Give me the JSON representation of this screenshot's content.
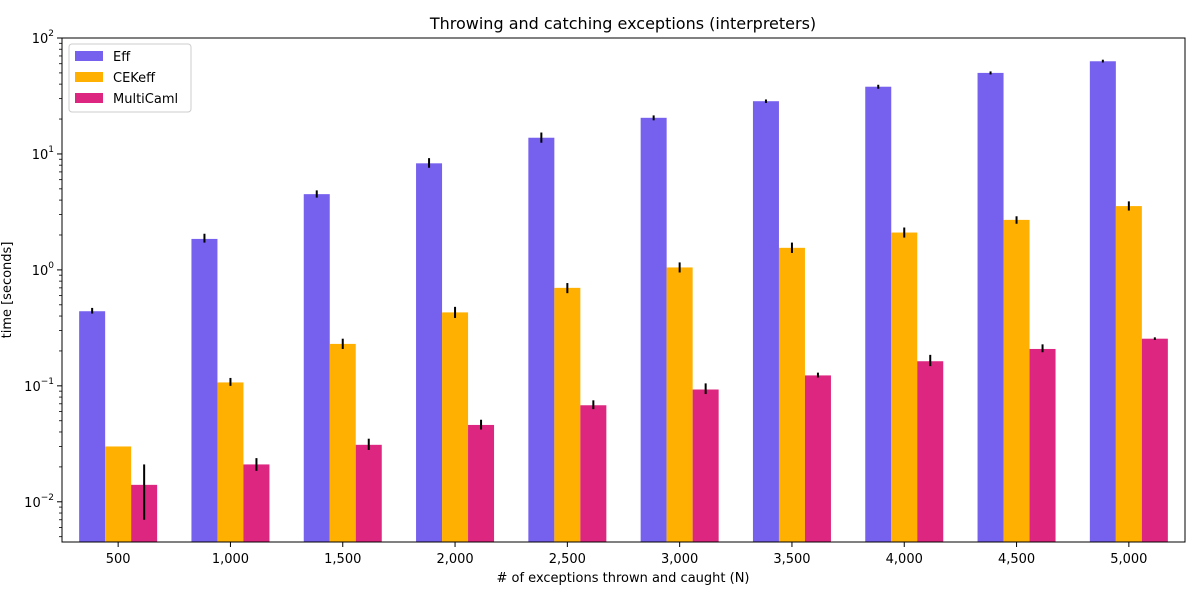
{
  "chart_data": {
    "type": "bar",
    "title": "Throwing and catching exceptions (interpreters)",
    "xlabel": "# of exceptions thrown and caught (N)",
    "ylabel": "time [seconds]",
    "yscale": "log",
    "ylim": [
      0.0045,
      100
    ],
    "ytick_values": [
      0.01,
      0.1,
      1,
      10,
      100
    ],
    "ytick_labels": [
      {
        "base": "10",
        "exp": "−2"
      },
      {
        "base": "10",
        "exp": "−1"
      },
      {
        "base": "10",
        "exp": "0"
      },
      {
        "base": "10",
        "exp": "1"
      },
      {
        "base": "10",
        "exp": "2"
      }
    ],
    "categories": [
      "500",
      "1,000",
      "1,500",
      "2,000",
      "2,500",
      "3,000",
      "3,500",
      "4,000",
      "4,500",
      "5,000"
    ],
    "legend_position": "top-left",
    "grid": false,
    "series": [
      {
        "name": "Eff",
        "color": "#7660ee",
        "values": [
          0.44,
          1.85,
          4.5,
          8.3,
          13.8,
          20.5,
          28.5,
          38.0,
          50.0,
          63.0
        ],
        "error_low": [
          0.42,
          1.72,
          4.2,
          7.6,
          12.5,
          19.5,
          27.5,
          36.5,
          48.5,
          61.5
        ],
        "error_high": [
          0.47,
          2.05,
          4.85,
          9.2,
          15.3,
          21.5,
          29.5,
          39.5,
          51.5,
          65.0
        ]
      },
      {
        "name": "CEKeff",
        "color": "#ffb000",
        "values": [
          0.03,
          0.107,
          0.23,
          0.43,
          0.7,
          1.05,
          1.55,
          2.1,
          2.7,
          3.55
        ],
        "error_low": null,
        "error_high": null,
        "errors": [
          null,
          [
            0.1,
            0.117
          ],
          [
            0.208,
            0.255
          ],
          [
            0.385,
            0.48
          ],
          [
            0.63,
            0.77
          ],
          [
            0.95,
            1.16
          ],
          [
            1.4,
            1.72
          ],
          [
            1.9,
            2.32
          ],
          [
            2.5,
            2.9
          ],
          [
            3.25,
            3.9
          ]
        ]
      },
      {
        "name": "MultiCaml",
        "color": "#dc267f",
        "values": [
          0.014,
          0.021,
          0.031,
          0.046,
          0.068,
          0.093,
          0.123,
          0.163,
          0.208,
          0.255
        ],
        "errors": [
          [
            0.007,
            0.021
          ],
          [
            0.0185,
            0.0238
          ],
          [
            0.028,
            0.035
          ],
          [
            0.042,
            0.051
          ],
          [
            0.063,
            0.075
          ],
          [
            0.085,
            0.105
          ],
          [
            0.118,
            0.13
          ],
          [
            0.148,
            0.185
          ],
          [
            0.195,
            0.228
          ],
          [
            0.249,
            0.262
          ]
        ]
      }
    ]
  }
}
